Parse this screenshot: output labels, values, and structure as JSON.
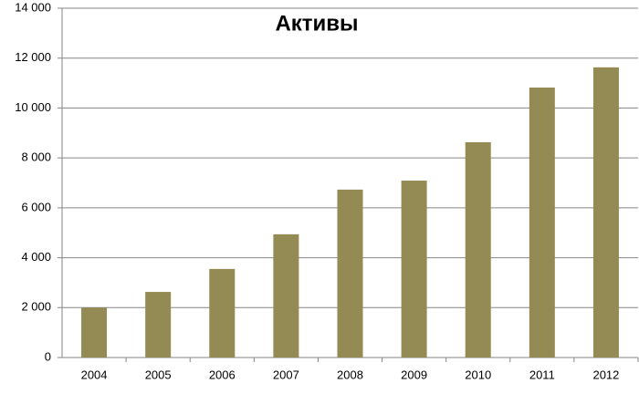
{
  "chart_data": {
    "type": "bar",
    "title": "Активы",
    "categories": [
      "2004",
      "2005",
      "2006",
      "2007",
      "2008",
      "2009",
      "2010",
      "2011",
      "2012"
    ],
    "values": [
      2000,
      2630,
      3550,
      4940,
      6730,
      7090,
      8630,
      10820,
      11630
    ],
    "color": "#948a54",
    "ylim": [
      0,
      14000
    ],
    "yticks": [
      0,
      {
        "value": 2000,
        "label": "2 000"
      },
      {
        "value": 4000,
        "label": "4 000"
      },
      {
        "value": 6000,
        "label": "6 000"
      },
      {
        "value": 8000,
        "label": "8 000"
      },
      {
        "value": 10000,
        "label": "10 000"
      },
      {
        "value": 12000,
        "label": "12 000"
      },
      {
        "value": 14000,
        "label": "14 000"
      }
    ],
    "grid": true
  }
}
